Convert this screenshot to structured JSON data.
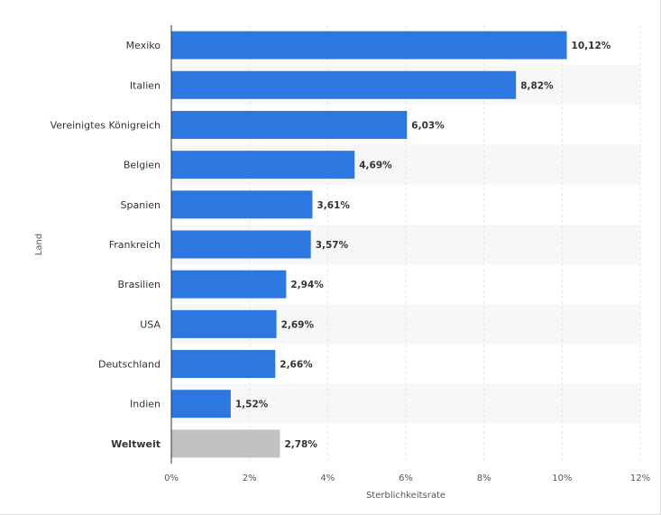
{
  "chart_data": {
    "type": "bar",
    "orientation": "horizontal",
    "categories": [
      "Mexiko",
      "Italien",
      "Vereinigtes Königreich",
      "Belgien",
      "Spanien",
      "Frankreich",
      "Brasilien",
      "USA",
      "Deutschland",
      "Indien",
      "Weltweit"
    ],
    "values": [
      10.12,
      8.82,
      6.03,
      4.69,
      3.61,
      3.57,
      2.94,
      2.69,
      2.66,
      1.52,
      2.78
    ],
    "value_labels": [
      "10,12%",
      "8,82%",
      "6,03%",
      "4,69%",
      "3,61%",
      "3,57%",
      "2,94%",
      "2,69%",
      "2,66%",
      "1,52%",
      "2,78%"
    ],
    "highlight_categories": [
      "Weltweit"
    ],
    "xlabel": "Sterblichkeitsrate",
    "ylabel": "Land",
    "xlim": [
      0,
      12
    ],
    "x_ticks": [
      0,
      2,
      4,
      6,
      8,
      10,
      12
    ],
    "x_tick_labels": [
      "0%",
      "2%",
      "4%",
      "6%",
      "8%",
      "10%",
      "12%"
    ],
    "grid": true,
    "colors": {
      "bar": "#2c77e0",
      "highlight_bar": "#c2c2c2",
      "band": "#f7f7f7",
      "grid": "#e4e4e4",
      "axis": "#333333"
    }
  }
}
